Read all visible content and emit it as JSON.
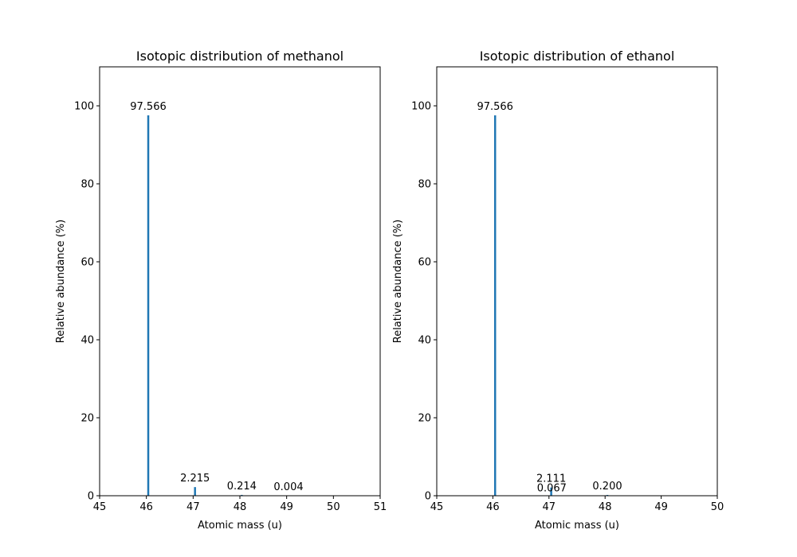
{
  "chart_data": [
    {
      "type": "bar",
      "title": "Isotopic distribution of methanol",
      "xlabel": "Atomic mass (u)",
      "ylabel": "Relative abundance (%)",
      "xlim": [
        45,
        51
      ],
      "ylim": [
        0,
        110
      ],
      "xticks": [
        "45",
        "46",
        "47",
        "48",
        "49",
        "50",
        "51"
      ],
      "yticks": [
        "0",
        "20",
        "40",
        "60",
        "80",
        "100"
      ],
      "grid": false,
      "series": [
        {
          "x": [
            46.04,
            47.04,
            48.04,
            49.04
          ],
          "values": [
            97.566,
            2.215,
            0.214,
            0.004
          ],
          "labels": [
            "97.566",
            "2.215",
            "0.214",
            "0.004"
          ]
        }
      ]
    },
    {
      "type": "bar",
      "title": "Isotopic distribution of ethanol",
      "xlabel": "Atomic mass (u)",
      "ylabel": "Relative abundance (%)",
      "xlim": [
        45,
        50
      ],
      "ylim": [
        0,
        110
      ],
      "xticks": [
        "45",
        "46",
        "47",
        "48",
        "49",
        "50"
      ],
      "yticks": [
        "0",
        "20",
        "40",
        "60",
        "80",
        "100"
      ],
      "grid": false,
      "series": [
        {
          "x": [
            46.04,
            47.04,
            47.05,
            48.04
          ],
          "values": [
            97.566,
            2.111,
            0.067,
            0.2
          ],
          "labels": [
            "97.566",
            "2.111",
            "0.067",
            "0.200"
          ]
        }
      ]
    }
  ],
  "colors": {
    "bar": "#1f77b4",
    "axes": "#000000"
  }
}
